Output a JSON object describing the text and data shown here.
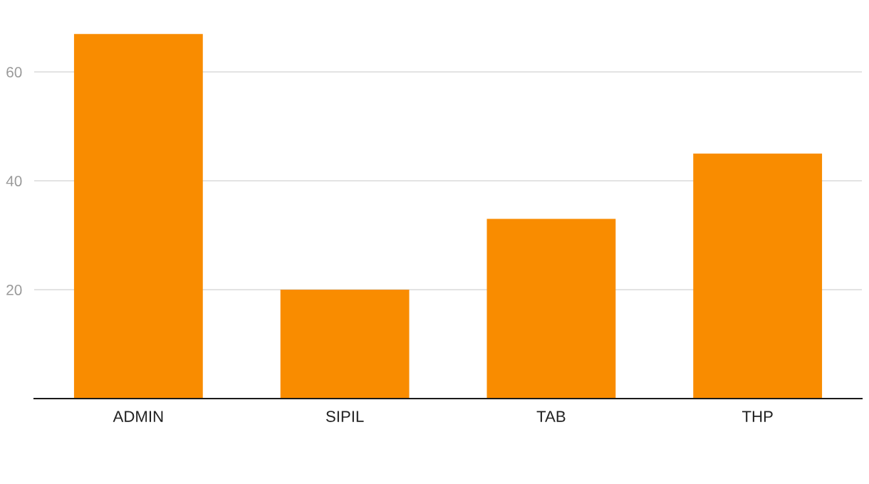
{
  "chart_data": {
    "type": "bar",
    "categories": [
      "ADMIN",
      "SIPIL",
      "TAB",
      "THP"
    ],
    "values": [
      67,
      20,
      33,
      45
    ],
    "color": "#f98c00",
    "ylim": [
      0,
      67
    ],
    "yticks": [
      20,
      40,
      60
    ],
    "grid": "y"
  }
}
